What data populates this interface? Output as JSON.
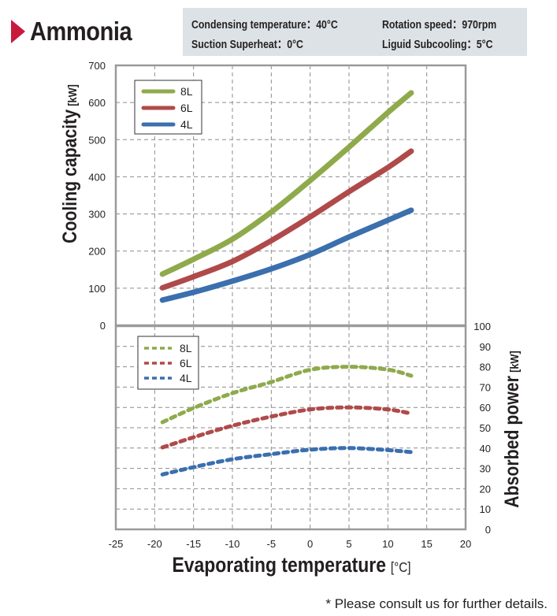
{
  "header": {
    "title": "Ammonia",
    "conditions": [
      {
        "label": "Condensing temperature",
        "value": "40°C",
        "text": "Condensing temperature：40°C"
      },
      {
        "label": "Rotation speed",
        "value": "970rpm",
        "text": "Rotation speed：970rpm"
      },
      {
        "label": "Suction Superheat",
        "value": "0°C",
        "text": "Suction Superheat：0°C"
      },
      {
        "label": "Liguid Subcooling",
        "value": "5°C",
        "text": "Liguid Subcooling：5°C"
      }
    ]
  },
  "footnote": "* Please consult us for further details.",
  "colors": {
    "8L": "#8faa4b",
    "6L": "#b04a4a",
    "4L": "#3b6fae",
    "title_marker": "#c8193f",
    "condition_box": "#dde2e6",
    "grid": "#8c8c8c",
    "frame": "#9a9a9a"
  },
  "chart_data": [
    {
      "type": "line",
      "title": "Cooling capacity",
      "xlabel": "Evaporating temperature",
      "xlabel_unit": "[°C]",
      "ylabel": "Cooling capacity",
      "ylabel_unit": "[kW]",
      "xlim": [
        -25,
        20
      ],
      "ylim": [
        0,
        700
      ],
      "x_ticks": [
        "-25",
        "-20",
        "-15",
        "-10",
        "-5",
        "0",
        "5",
        "10",
        "15",
        "20"
      ],
      "y_ticks": [
        "0",
        "100",
        "200",
        "300",
        "400",
        "500",
        "600",
        "700"
      ],
      "y_tick_values": [
        0,
        100,
        200,
        300,
        400,
        500,
        600,
        700
      ],
      "grid": true,
      "line_style": "solid",
      "legend_position": "top-left",
      "x": [
        -19,
        -15,
        -10,
        -5,
        0,
        5,
        10,
        13
      ],
      "series": [
        {
          "name": "8L",
          "values": [
            138,
            178,
            232,
            305,
            390,
            480,
            573,
            626
          ]
        },
        {
          "name": "6L",
          "values": [
            101,
            131,
            172,
            228,
            292,
            360,
            425,
            469
          ]
        },
        {
          "name": "4L",
          "values": [
            68,
            89,
            119,
            152,
            191,
            238,
            283,
            310
          ]
        }
      ]
    },
    {
      "type": "line",
      "title": "Absorbed power",
      "xlabel": "Evaporating temperature",
      "xlabel_unit": "[°C]",
      "ylabel": "Absorbed power",
      "ylabel_unit": "[kW]",
      "xlim": [
        -25,
        20
      ],
      "ylim": [
        0,
        100
      ],
      "y_ticks": [
        "0",
        "10",
        "20",
        "30",
        "40",
        "50",
        "60",
        "70",
        "80",
        "90",
        "100"
      ],
      "y_tick_values": [
        0,
        10,
        20,
        30,
        40,
        50,
        60,
        70,
        80,
        90,
        100
      ],
      "grid": true,
      "line_style": "dashed",
      "legend_position": "top-left",
      "x": [
        -19,
        -15,
        -10,
        -5,
        0,
        5,
        10,
        13
      ],
      "series": [
        {
          "name": "8L",
          "values": [
            52.7,
            59.7,
            67,
            72.5,
            78.5,
            80,
            78.6,
            75.6
          ]
        },
        {
          "name": "6L",
          "values": [
            40.3,
            45.3,
            51,
            55.5,
            59,
            60,
            59,
            57
          ]
        },
        {
          "name": "4L",
          "values": [
            27,
            30.6,
            34.5,
            37,
            39.2,
            40,
            39,
            38
          ]
        }
      ]
    }
  ]
}
